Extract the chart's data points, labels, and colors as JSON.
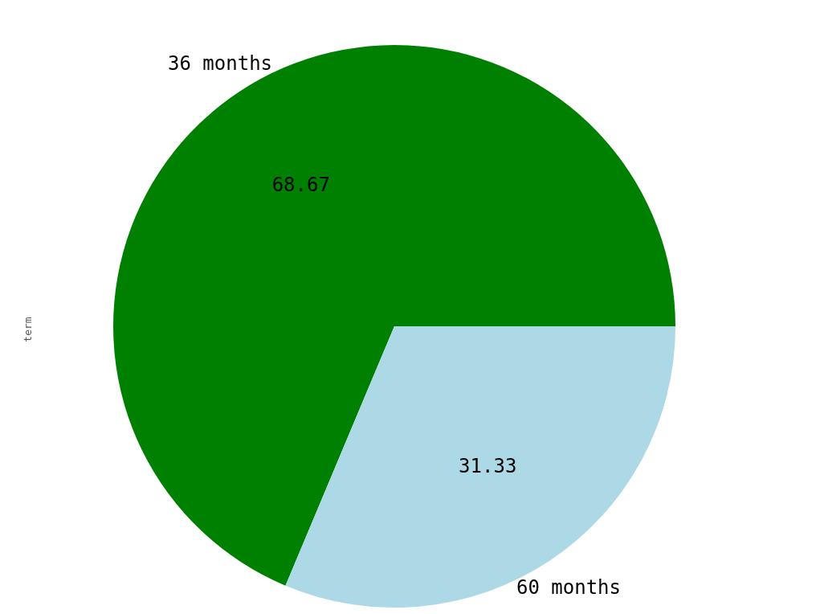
{
  "chart_data": {
    "type": "pie",
    "ylabel": "term",
    "categories": [
      "36 months",
      "60 months"
    ],
    "values": [
      68.67,
      31.33
    ],
    "colors": [
      "#008000",
      "#add8e6"
    ],
    "data_labels": true
  }
}
